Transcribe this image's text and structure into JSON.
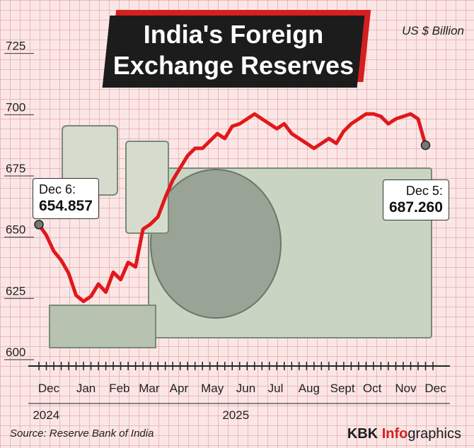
{
  "title": "India's Foreign Exchange Reserves",
  "title_line1": "India's Foreign",
  "title_line2": "Exchange Reserves",
  "unit": "US $ Billion",
  "source": "Source: Reserve Bank of India",
  "brand": {
    "prefix": "KBK ",
    "accent": "Info",
    "rest": "graphics"
  },
  "colors": {
    "line": "#e0181b",
    "title_bg": "#1c1c1c",
    "title_accent": "#d61f1f",
    "grid": "#f0b8b8",
    "background": "#fbe6e6"
  },
  "callouts": {
    "start": {
      "date": "Dec 6:",
      "value": "654.857"
    },
    "end": {
      "date": "Dec 5:",
      "value": "687.260"
    }
  },
  "chart_data": {
    "type": "line",
    "title": "India's Foreign Exchange Reserves",
    "ylabel": "US $ Billion",
    "ylim": [
      600,
      735
    ],
    "yticks": [
      600,
      625,
      650,
      675,
      700,
      725
    ],
    "xlim": [
      0,
      53
    ],
    "month_labels": [
      "Dec",
      "Jan",
      "Feb",
      "Mar",
      "Apr",
      "May",
      "Jun",
      "Jul",
      "Aug",
      "Sept",
      "Oct",
      "Nov",
      "Dec"
    ],
    "month_positions": [
      0,
      5,
      9.5,
      13.5,
      17.5,
      22,
      26.5,
      30.5,
      35,
      39.5,
      43.5,
      48,
      52
    ],
    "year_labels": [
      {
        "label": "2024",
        "position": 0.5
      },
      {
        "label": "2025",
        "position": 26
      }
    ],
    "grid": true,
    "series": [
      {
        "x": [
          0,
          1,
          2,
          3,
          4,
          5,
          6,
          7,
          8,
          9,
          10,
          11,
          12,
          13,
          14,
          15,
          16,
          17,
          18,
          19,
          20,
          21,
          22,
          23,
          24,
          25,
          26,
          27,
          28,
          29,
          30,
          31,
          32,
          33,
          34,
          35,
          36,
          37,
          38,
          39,
          40,
          41,
          42,
          43,
          44,
          45,
          46,
          47,
          48,
          49,
          50,
          51,
          52
        ],
        "values": [
          654.857,
          650.5,
          644,
          640.3,
          635,
          626,
          623.5,
          625.6,
          630.6,
          627.3,
          635.4,
          632.4,
          639.4,
          637.6,
          653,
          655,
          658,
          666,
          673,
          678,
          683,
          686,
          686,
          689,
          692,
          690,
          695,
          696,
          698,
          700,
          698,
          696,
          694,
          696,
          692,
          690,
          688,
          686,
          688,
          690,
          688,
          693,
          696,
          698,
          700,
          700,
          699,
          696,
          698,
          699,
          700,
          698,
          687.26
        ]
      }
    ]
  }
}
